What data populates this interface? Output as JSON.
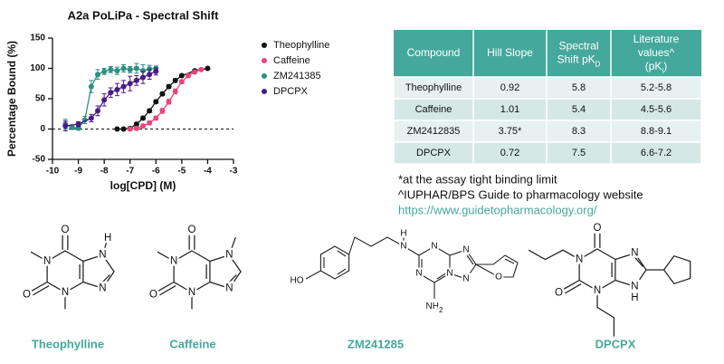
{
  "chart_data": {
    "type": "scatter",
    "title": "A2a PoLiPa - Spectral Shift",
    "x_label": "log[CPD] (M)",
    "y_label": "Percentage Bound (%)",
    "xlim": [
      -10,
      -3
    ],
    "xticks": [
      -10,
      -9,
      -8,
      -7,
      -6,
      -5,
      -4,
      -3
    ],
    "ylim": [
      -50,
      150
    ],
    "yticks": [
      -50,
      0,
      50,
      100,
      150
    ],
    "hline": 0,
    "lines": true,
    "legend": "right",
    "series": [
      {
        "name": "Theophylline",
        "color": "#111111",
        "x": [
          -7.5,
          -7.25,
          -7,
          -6.75,
          -6.5,
          -6.25,
          -6,
          -5.75,
          -5.5,
          -5.25,
          -5,
          -4.5,
          -4
        ],
        "values": [
          0,
          0,
          1,
          8,
          18,
          30,
          45,
          58,
          70,
          80,
          88,
          96,
          100
        ],
        "errors": [
          2,
          2,
          2,
          3,
          3,
          3,
          3,
          3,
          3,
          3,
          2,
          2,
          2
        ]
      },
      {
        "name": "Caffeine",
        "color": "#e8457a",
        "x": [
          -7,
          -6.75,
          -6.5,
          -6.25,
          -6,
          -5.75,
          -5.5,
          -5.25,
          -5,
          -4.75,
          -4.5,
          -4.25
        ],
        "values": [
          0,
          1,
          5,
          10,
          18,
          30,
          45,
          62,
          78,
          88,
          94,
          98
        ],
        "errors": [
          2,
          2,
          3,
          3,
          3,
          4,
          4,
          4,
          3,
          3,
          2,
          2
        ]
      },
      {
        "name": "ZM241385",
        "color": "#2f8f84",
        "x": [
          -9.5,
          -9.25,
          -9,
          -8.75,
          -8.5,
          -8.25,
          -8,
          -7.75,
          -7.5,
          -7.25,
          -7,
          -6.75,
          -6.5,
          -6.25,
          -6
        ],
        "values": [
          8,
          3,
          2,
          15,
          70,
          90,
          95,
          98,
          96,
          100,
          98,
          100,
          96,
          99,
          100
        ],
        "errors": [
          8,
          4,
          4,
          6,
          10,
          8,
          5,
          5,
          6,
          6,
          5,
          8,
          10,
          6,
          4
        ]
      },
      {
        "name": "DPCPX",
        "color": "#4a1a85",
        "x": [
          -9.5,
          -9,
          -8.5,
          -8.25,
          -8,
          -7.75,
          -7.5,
          -7.25,
          -7,
          -6.75,
          -6.5,
          -6.25,
          -6
        ],
        "values": [
          5,
          8,
          18,
          30,
          48,
          60,
          65,
          70,
          75,
          80,
          85,
          90,
          95
        ],
        "errors": [
          8,
          4,
          6,
          8,
          10,
          8,
          10,
          10,
          12,
          8,
          10,
          8,
          6
        ]
      }
    ]
  },
  "table": {
    "header": [
      {
        "lines": [
          "Compound"
        ]
      },
      {
        "lines": [
          "Hill Slope"
        ]
      },
      {
        "lines": [
          "Spectral",
          "Shift pK"
        ],
        "sub": "D"
      },
      {
        "lines": [
          "Literature",
          "values^",
          "(pK"
        ],
        "sub": "i",
        "after": ")"
      }
    ],
    "rows": [
      [
        "Theophylline",
        "0.92",
        "5.8",
        "5.2-5.8"
      ],
      [
        "Caffeine",
        "1.01",
        "5.4",
        "4.5-5.6"
      ],
      [
        "ZM2412835",
        "3.75*",
        "8.3",
        "8.8-9.1"
      ],
      [
        "DPCPX",
        "0.72",
        "7.5",
        "6.6-7.2"
      ]
    ]
  },
  "notes": [
    "*at the assay tight binding limit",
    "^IUPHAR/BPS  Guide to pharmacology website",
    "https://www.guidetopharmacology.org/"
  ],
  "structures": [
    {
      "name": "Theophylline",
      "atoms": [
        "O",
        "O",
        "N",
        "N",
        "N",
        "N",
        "H"
      ]
    },
    {
      "name": "Caffeine",
      "atoms": [
        "O",
        "O",
        "N",
        "N",
        "N",
        "N"
      ]
    },
    {
      "name": "ZM241285",
      "atoms": [
        "H",
        "N",
        "N",
        "N",
        "N",
        "N",
        "N",
        "O",
        "HO",
        "NH",
        "2"
      ]
    },
    {
      "name": "DPCPX",
      "atoms": [
        "O",
        "O",
        "N",
        "N",
        "N",
        "N",
        "H"
      ]
    }
  ]
}
